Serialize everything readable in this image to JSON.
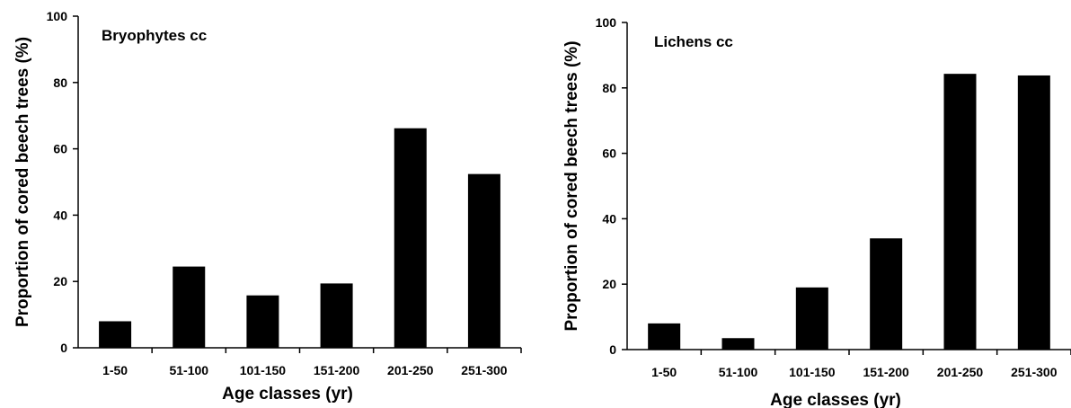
{
  "chart_data": [
    {
      "type": "bar",
      "title": "Bryophytes cc",
      "xlabel": "Age classes (yr)",
      "ylabel": "Proportion of cored beech trees (%)",
      "categories": [
        "1-50",
        "51-100",
        "101-150",
        "151-200",
        "201-250",
        "251-300"
      ],
      "values": [
        8,
        24.5,
        15.8,
        19.4,
        66.2,
        52.4
      ],
      "ylim": [
        0,
        100
      ],
      "yticks": [
        0,
        20,
        40,
        60,
        80,
        100
      ],
      "bar_color": "#000000",
      "grid": false,
      "legend": "none"
    },
    {
      "type": "bar",
      "title": "Lichens cc",
      "xlabel": "Age classes (yr)",
      "ylabel": "Proportion of cored beech trees (%)",
      "categories": [
        "1-50",
        "51-100",
        "101-150",
        "151-200",
        "201-250",
        "251-300"
      ],
      "values": [
        8,
        3.5,
        19,
        34,
        84.3,
        83.8
      ],
      "ylim": [
        0,
        100
      ],
      "yticks": [
        0,
        20,
        40,
        60,
        80,
        100
      ],
      "bar_color": "#000000",
      "grid": false,
      "legend": "none"
    }
  ]
}
